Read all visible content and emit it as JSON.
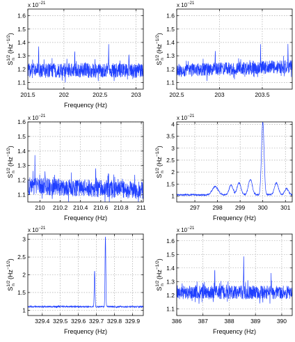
{
  "chart_data": [
    {
      "type": "line",
      "title": "",
      "xlabel": "Frequency (Hz)",
      "ylabel": "S",
      "ylabel_sup": "1/2",
      "ylabel_sub": "n",
      "ylabel_unit": "(Hz",
      "ylabel_unit_sup": "−1/2",
      "ylabel_close": ")",
      "scale_base": "x 10",
      "scale_exp": "−21",
      "xlim": [
        201.5,
        203.1
      ],
      "ylim": [
        1.05,
        1.65
      ],
      "xticks": [
        201.5,
        202,
        202.5,
        203
      ],
      "xticklabels": [
        "201.5",
        "202",
        "202.5",
        "203"
      ],
      "yticks": [
        1.1,
        1.2,
        1.3,
        1.4,
        1.5,
        1.6
      ],
      "yticklabels": [
        "1.1",
        "1.2",
        "1.3",
        "1.4",
        "1.5",
        "1.6"
      ],
      "grid": true,
      "series": [
        {
          "color": "#1f3fff",
          "baseline": 1.19,
          "noise": 0.055,
          "features": [
            {
              "x": 202.15,
              "y": 1.37
            },
            {
              "x": 202.62,
              "y": 1.36
            },
            {
              "x": 201.65,
              "y": 1.33
            },
            {
              "x": 202.9,
              "y": 1.32
            }
          ]
        }
      ]
    },
    {
      "type": "line",
      "title": "",
      "xlabel": "",
      "ylabel": "S",
      "ylabel_sup": "1/2",
      "ylabel_sub": "n",
      "ylabel_unit": "(Hz",
      "ylabel_unit_sup": "−1/2",
      "ylabel_close": ")",
      "scale_base": "x 10",
      "scale_exp": "−21",
      "xlim": [
        202.5,
        203.85
      ],
      "ylim": [
        1.05,
        1.65
      ],
      "xticks": [
        202.5,
        203,
        203.5
      ],
      "xticklabels": [
        "202.5",
        "203",
        "203.5"
      ],
      "yticks": [
        1.1,
        1.2,
        1.3,
        1.4,
        1.5,
        1.6
      ],
      "yticklabels": [
        "1.1",
        "1.2",
        "1.3",
        "1.4",
        "1.5",
        "1.6"
      ],
      "grid": true,
      "series": [
        {
          "color": "#1f3fff",
          "baseline": 1.19,
          "noise": 0.05,
          "trend": 0.03,
          "features": [
            {
              "x": 203.48,
              "y": 1.36
            },
            {
              "x": 203.8,
              "y": 1.38
            },
            {
              "x": 202.95,
              "y": 1.32
            }
          ]
        }
      ]
    },
    {
      "type": "line",
      "title": "",
      "xlabel": "Frequency (Hz)",
      "ylabel": "S",
      "ylabel_sup": "1/2",
      "ylabel_sub": "n",
      "ylabel_unit": "(Hz",
      "ylabel_unit_sup": "−1/2",
      "ylabel_close": ")",
      "scale_base": "x 10",
      "scale_exp": "−21",
      "xlim": [
        209.88,
        211.02
      ],
      "ylim": [
        1.05,
        1.6
      ],
      "xticks": [
        210,
        210.2,
        210.4,
        210.6,
        210.8,
        211
      ],
      "xticklabels": [
        "210",
        "210.2",
        "210.4",
        "210.6",
        "210.8",
        "211"
      ],
      "yticks": [
        1.1,
        1.2,
        1.3,
        1.4,
        1.5,
        1.6
      ],
      "yticklabels": [
        "1.1",
        "1.2",
        "1.3",
        "1.4",
        "1.5",
        "1.6"
      ],
      "grid": true,
      "series": [
        {
          "color": "#1f3fff",
          "baseline": 1.16,
          "noise": 0.06,
          "trend": -0.03,
          "features": [
            {
              "x": 209.95,
              "y": 1.36
            },
            {
              "x": 210.05,
              "y": 1.33
            },
            {
              "x": 210.55,
              "y": 1.29
            }
          ]
        }
      ]
    },
    {
      "type": "line",
      "title": "",
      "xlabel": "Frequency (Hz)",
      "ylabel": "S",
      "ylabel_sup": "1/2",
      "ylabel_sub": "n",
      "ylabel_unit": "(Hz",
      "ylabel_unit_sup": "−1/2",
      "ylabel_close": ")",
      "scale_base": "x 10",
      "scale_exp": "−21",
      "xlim": [
        296.2,
        301.3
      ],
      "ylim": [
        0.75,
        4.1
      ],
      "xticks": [
        297,
        298,
        299,
        300,
        301
      ],
      "xticklabels": [
        "297",
        "298",
        "299",
        "300",
        "301"
      ],
      "yticks": [
        1,
        1.5,
        2,
        2.5,
        3,
        3.5,
        4
      ],
      "yticklabels": [
        "1",
        "1.5",
        "2",
        "2.5",
        "3",
        "3.5",
        "4"
      ],
      "grid": true,
      "series": [
        {
          "color": "#1f3fff",
          "baseline": 1.05,
          "noise": 0.03,
          "features": [
            {
              "x": 297.9,
              "y": 1.4,
              "w": 0.18
            },
            {
              "x": 298.6,
              "y": 1.45,
              "w": 0.12
            },
            {
              "x": 298.95,
              "y": 1.55,
              "w": 0.12
            },
            {
              "x": 299.45,
              "y": 1.7,
              "w": 0.12
            },
            {
              "x": 300.0,
              "y": 4.1,
              "w": 0.08
            },
            {
              "x": 300.6,
              "y": 1.55,
              "w": 0.12
            },
            {
              "x": 301.05,
              "y": 1.3,
              "w": 0.12
            }
          ]
        }
      ]
    },
    {
      "type": "line",
      "title": "",
      "xlabel": "Frequency (Hz)",
      "ylabel": "S",
      "ylabel_sup": "1/2",
      "ylabel_sub": "n",
      "ylabel_unit": "(Hz",
      "ylabel_unit_sup": "−1/2",
      "ylabel_close": ")",
      "scale_base": "x 10",
      "scale_exp": "−21",
      "xlim": [
        329.32,
        329.96
      ],
      "ylim": [
        0.85,
        3.15
      ],
      "xticks": [
        329.4,
        329.5,
        329.6,
        329.7,
        329.8,
        329.9
      ],
      "xticklabels": [
        "329.4",
        "329.5",
        "329.6",
        "329.7",
        "329.8",
        "329.9"
      ],
      "yticks": [
        1,
        1.5,
        2,
        2.5,
        3
      ],
      "yticklabels": [
        "1",
        "1.5",
        "2",
        "2.5",
        "3"
      ],
      "grid": true,
      "series": [
        {
          "color": "#1f3fff",
          "baseline": 1.1,
          "noise": 0.02,
          "features": [
            {
              "x": 329.69,
              "y": 2.1,
              "w": 0.003
            },
            {
              "x": 329.75,
              "y": 3.1,
              "w": 0.003
            }
          ]
        }
      ]
    },
    {
      "type": "line",
      "title": "",
      "xlabel": "Frequency (Hz)",
      "ylabel": "S",
      "ylabel_sup": "1/2",
      "ylabel_sub": "n",
      "ylabel_unit": "(Hz",
      "ylabel_unit_sup": "−1/2",
      "ylabel_close": ")",
      "scale_base": "x 10",
      "scale_exp": "−21",
      "xlim": [
        386,
        390.4
      ],
      "ylim": [
        1.05,
        1.65
      ],
      "xticks": [
        386,
        387,
        388,
        389,
        390
      ],
      "xticklabels": [
        "386",
        "387",
        "388",
        "389",
        "390"
      ],
      "yticks": [
        1.1,
        1.2,
        1.3,
        1.4,
        1.5,
        1.6
      ],
      "yticklabels": [
        "1.1",
        "1.2",
        "1.3",
        "1.4",
        "1.5",
        "1.6"
      ],
      "grid": true,
      "series": [
        {
          "color": "#1f3fff",
          "baseline": 1.22,
          "noise": 0.05,
          "features": [
            {
              "x": 388.55,
              "y": 1.45,
              "w": 0.01
            },
            {
              "x": 387.45,
              "y": 1.39,
              "w": 0.01
            },
            {
              "x": 389.6,
              "y": 1.33,
              "w": 0.01
            }
          ]
        }
      ]
    }
  ]
}
